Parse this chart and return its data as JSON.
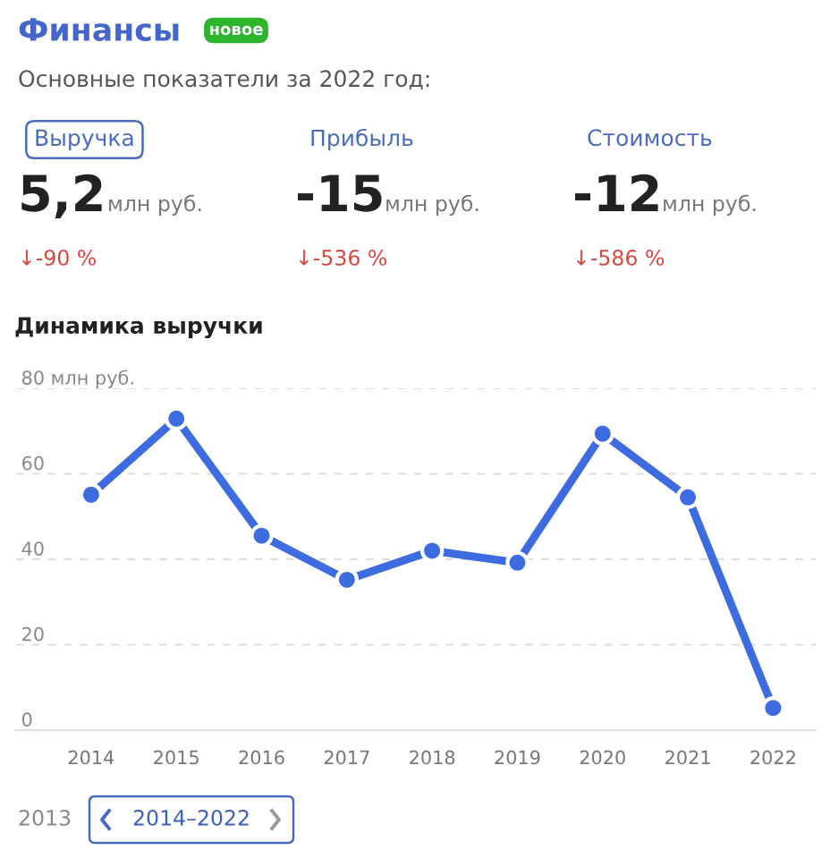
{
  "chart_data": [
    {
      "type": "other",
      "title": "Финансы",
      "subtitle": "Основные показатели за 2022 год:",
      "annotations": [
        "новое",
        "Выручка",
        "Прибыль",
        "Стоимость",
        "5,2",
        "-15",
        "-12",
        "млн руб.",
        "млн руб.",
        "млн руб.",
        "↓-90 %",
        "↓-536 %",
        "↓-586 %"
      ]
    },
    {
      "type": "line",
      "title": "Динамика выручки",
      "categories": [
        "2014",
        "2015",
        "2016",
        "2017",
        "2018",
        "2019",
        "2020",
        "2021",
        "2022"
      ],
      "series": [
        {
          "color": "#3d6be0",
          "values": [
            55.1,
            72.9,
            45.5,
            35.2,
            42,
            39.2,
            69.4,
            54.5,
            5.2
          ]
        }
      ],
      "ylim": [
        0,
        80
      ],
      "yticks": [
        0,
        20,
        40,
        60,
        {
          "value": 80,
          "label": "80 млн руб."
        }
      ],
      "grid": "y",
      "legend": false,
      "marker": "circle",
      "line_style": "solid",
      "annotations": [
        "2013",
        "2014–2022"
      ]
    }
  ]
}
